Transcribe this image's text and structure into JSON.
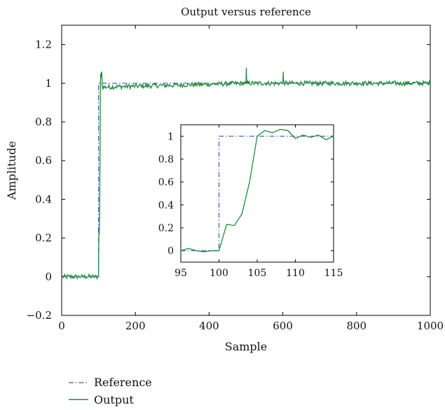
{
  "chart_data": {
    "type": "line",
    "title": "Output versus reference",
    "xlabel": "Sample",
    "ylabel": "Amplitude",
    "xlim": [
      0,
      1000
    ],
    "ylim": [
      -0.2,
      1.3
    ],
    "xticks": [
      0,
      200,
      400,
      600,
      800,
      1000
    ],
    "yticks": [
      -0.2,
      0,
      0.2,
      0.4,
      0.6,
      0.8,
      1,
      1.2
    ],
    "xtick_labels": [
      "0",
      "200",
      "400",
      "600",
      "800",
      "1000"
    ],
    "ytick_labels": [
      "−0.2",
      "0",
      "0.2",
      "0.4",
      "0.6",
      "0.8",
      "1",
      "1.2"
    ],
    "legend_position": "bottom-left, below plot",
    "grid": false,
    "series": [
      {
        "name": "Reference",
        "style": "dash-dot",
        "color": "#3b5ba9",
        "x": [
          0,
          100,
          100,
          1000
        ],
        "y": [
          0,
          0,
          1,
          1
        ]
      },
      {
        "name": "Output",
        "style": "solid",
        "color": "#1e8a3c",
        "noise_amplitude": 0.012,
        "x": [
          0,
          100,
          101,
          102,
          103,
          104,
          105,
          106,
          107,
          108,
          109,
          110,
          500,
          501,
          502,
          503,
          600,
          601,
          602,
          603,
          1000
        ],
        "y": [
          0,
          0,
          0.23,
          0.22,
          0.32,
          0.6,
          1.0,
          1.05,
          1.03,
          1.06,
          1.05,
          0.98,
          1.0,
          1.08,
          1.0,
          1.0,
          1.0,
          1.06,
          1.0,
          1.0,
          1.0
        ]
      }
    ],
    "inset": {
      "xlim": [
        95,
        115
      ],
      "ylim": [
        -0.1,
        1.1
      ],
      "xticks": [
        95,
        100,
        105,
        110,
        115
      ],
      "yticks": [
        0,
        0.2,
        0.4,
        0.6,
        0.8,
        1
      ],
      "xtick_labels": [
        "95",
        "100",
        "105",
        "110",
        "115"
      ],
      "ytick_labels": [
        "0",
        "0.2",
        "0.4",
        "0.6",
        "0.8",
        "1"
      ],
      "reference": {
        "x": [
          95,
          100,
          100,
          115
        ],
        "y": [
          0,
          0,
          1,
          1
        ]
      },
      "output": {
        "x": [
          95,
          96,
          97,
          98,
          99,
          100,
          101,
          102,
          103,
          104,
          105,
          106,
          107,
          108,
          109,
          110,
          111,
          112,
          113,
          114,
          115
        ],
        "y": [
          0.0,
          0.02,
          0.0,
          -0.01,
          0.0,
          0.0,
          0.23,
          0.22,
          0.32,
          0.6,
          1.0,
          1.05,
          1.03,
          1.06,
          1.05,
          0.98,
          1.01,
          0.99,
          1.01,
          0.97,
          1.0
        ]
      }
    }
  }
}
